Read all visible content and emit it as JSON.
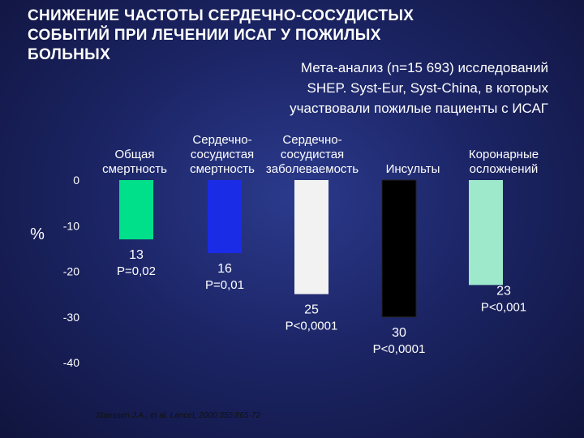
{
  "title": "СНИЖЕНИЕ ЧАСТОТЫ СЕРДЕЧНО-СОСУДИСТЫХ\nСОБЫТИЙ ПРИ ЛЕЧЕНИИ ИСАГ У ПОЖИЛЫХ\nБОЛЬНЫХ",
  "subtitle": "Мета-анализ (n=15 693) исследований\nSHEP. Syst-Eur, Syst-China, в которых\nучаствовали пожилые пациенты с ИСАГ",
  "source": "Staessen J.A.. et al. Lancet, 2000;355:865-72",
  "chart_data": {
    "type": "bar",
    "ylabel": "%",
    "ylim": [
      -40,
      0
    ],
    "yticks": [
      "0",
      "-10",
      "-20",
      "-30",
      "-40"
    ],
    "categories": [
      [
        "Общая",
        "смертность"
      ],
      [
        "Сердечно-",
        "сосудистая",
        "смертность"
      ],
      [
        "Сердечно-",
        "сосудистая",
        "заболеваемость"
      ],
      [
        "Инсульты"
      ],
      [
        "Коронарные",
        "осложнений"
      ]
    ],
    "values": [
      -13,
      -16,
      -25,
      -30,
      -23
    ],
    "value_labels": [
      "13",
      "16",
      "25",
      "30",
      "23"
    ],
    "p_labels": [
      "P=0,02",
      "P=0,01",
      "P<0,0001",
      "P<0,0001",
      "P<0,001"
    ],
    "colors": [
      "#00e08a",
      "#1a2ce6",
      "#f2f2f2",
      "#000000",
      "#9ee8cc"
    ]
  }
}
